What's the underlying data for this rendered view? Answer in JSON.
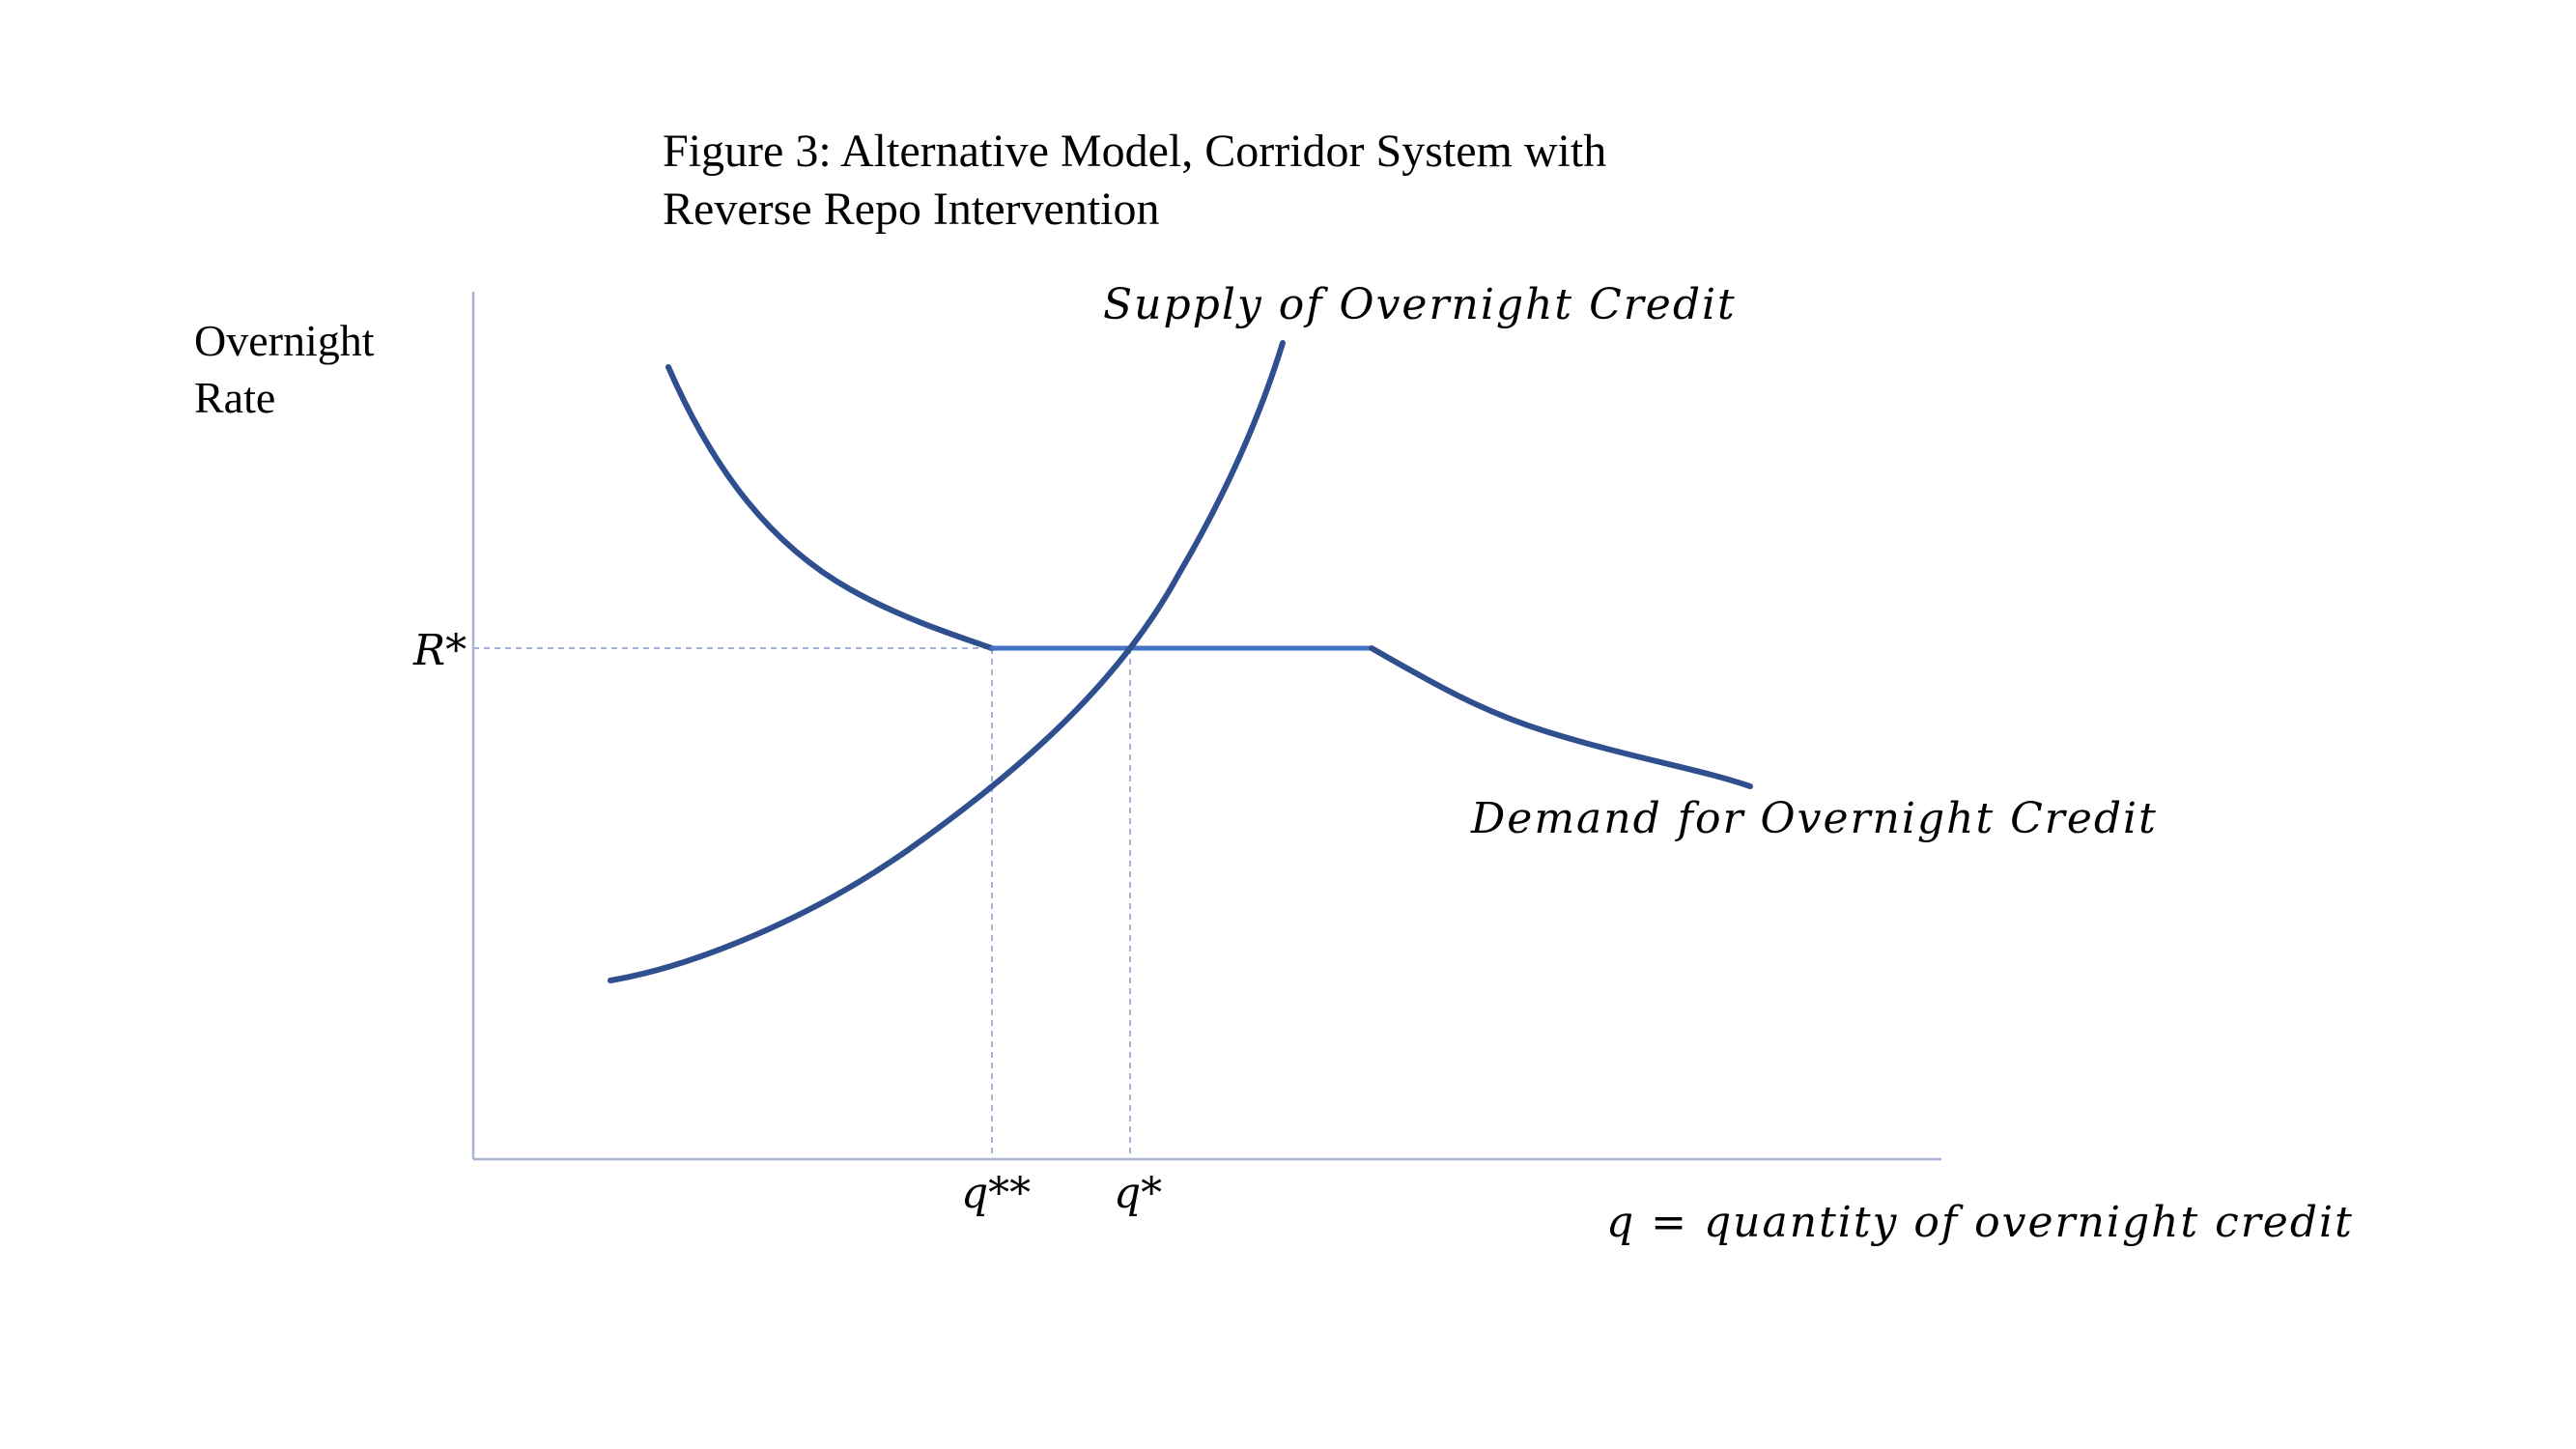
{
  "figure": {
    "title_line1": "Figure 3: Alternative Model, Corridor System with",
    "title_line2": "Reverse Repo Intervention"
  },
  "axes": {
    "ylabel_line1": "Overnight",
    "ylabel_line2": "Rate",
    "xlabel": "q = quantity of overnight credit"
  },
  "labels": {
    "supply": "Supply of Overnight Credit",
    "demand": "Demand for Overnight Credit",
    "r_star": "R*",
    "q_star": "q*",
    "q_double_star": "q**"
  },
  "colors": {
    "curve": "#2f4f8f",
    "flat_segment": "#4472c4",
    "axis": "#a9b3d6",
    "guide": "#a6b1d6"
  }
}
